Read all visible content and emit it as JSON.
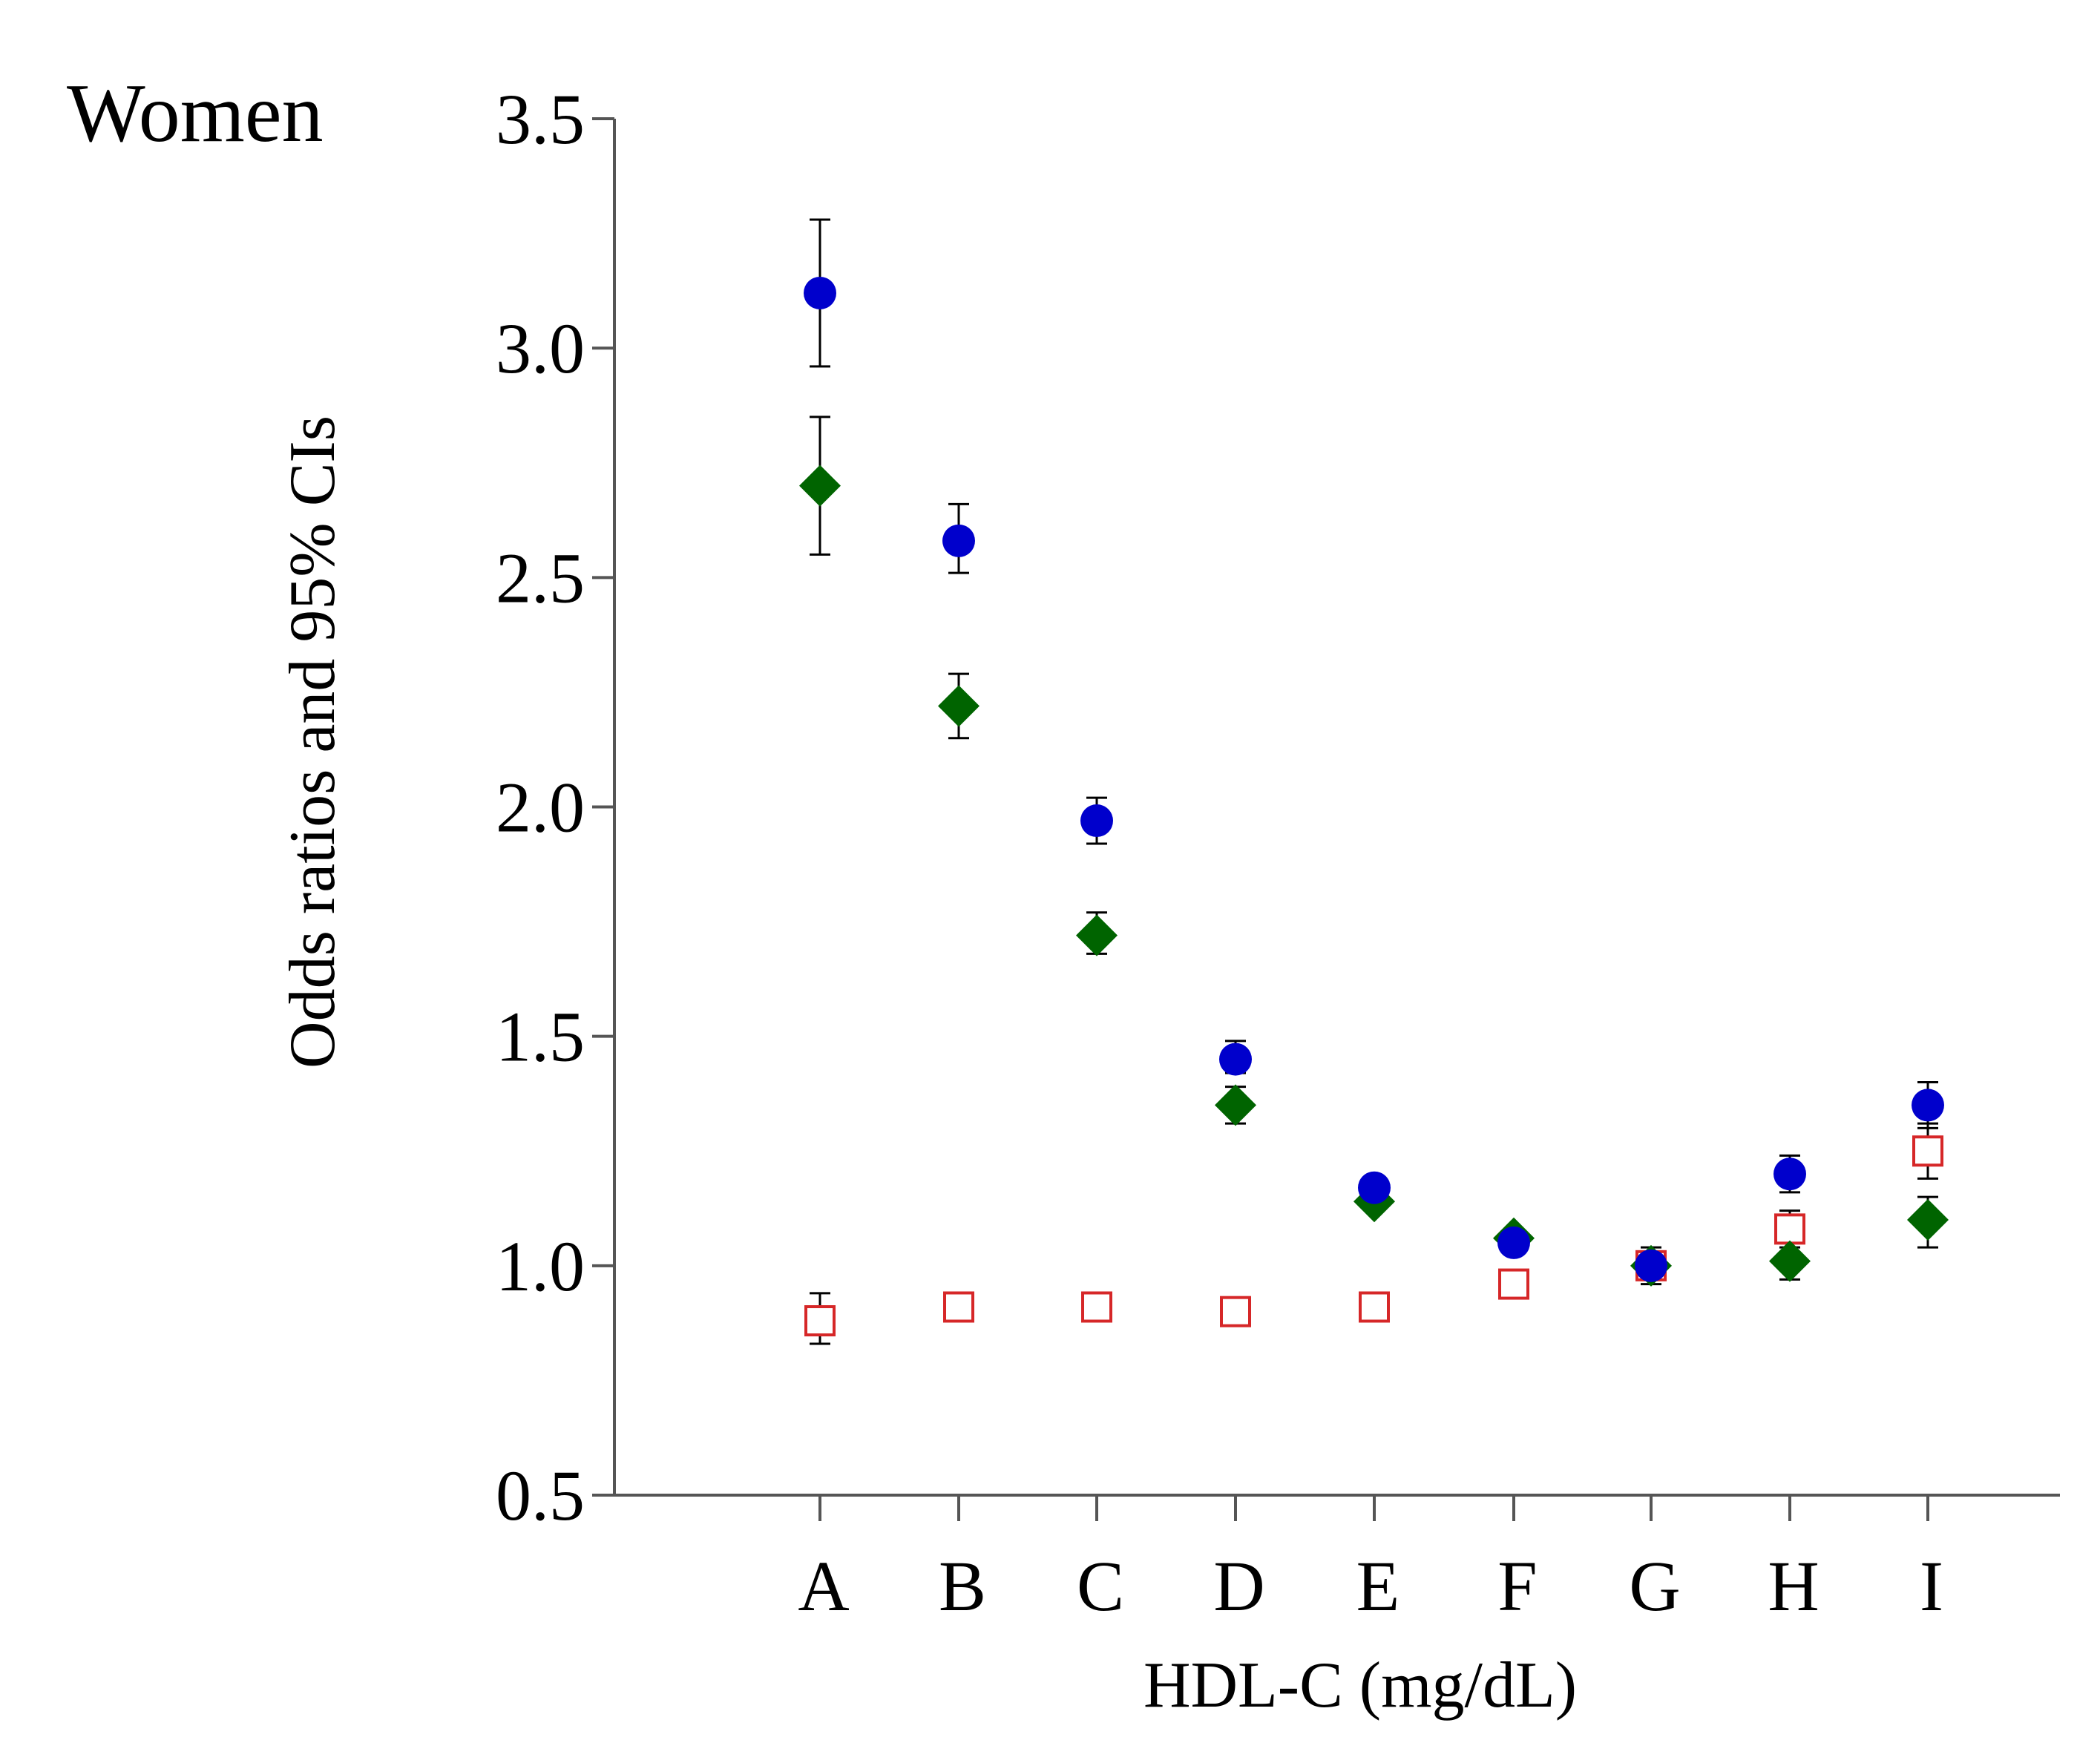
{
  "chart_data": {
    "type": "scatter",
    "panel_title": "Women",
    "xlabel": "HDL-C (mg/dL)",
    "ylabel": "Odds ratios and 95% CIs",
    "categories": [
      "A",
      "B",
      "C",
      "D",
      "E",
      "F",
      "G",
      "H",
      "I"
    ],
    "ylim": [
      0.5,
      3.5
    ],
    "yticks": [
      "0.5",
      "1.0",
      "1.5",
      "2.0",
      "2.5",
      "3.0",
      "3.5"
    ],
    "grid": false,
    "legend": "none",
    "series": [
      {
        "name": "circle",
        "marker": "circle",
        "color": "#0000cc",
        "values": [
          3.12,
          2.58,
          1.97,
          1.45,
          1.17,
          1.05,
          1.0,
          1.2,
          1.35
        ],
        "ci_low": [
          2.96,
          2.51,
          1.92,
          1.42,
          1.15,
          1.03,
          1.0,
          1.16,
          1.3
        ],
        "ci_high": [
          3.28,
          2.66,
          2.02,
          1.49,
          1.19,
          1.08,
          1.0,
          1.24,
          1.4
        ]
      },
      {
        "name": "diamond",
        "marker": "diamond",
        "color": "#006400",
        "values": [
          2.7,
          2.22,
          1.72,
          1.35,
          1.14,
          1.06,
          1.0,
          1.01,
          1.1
        ],
        "ci_low": [
          2.55,
          2.15,
          1.68,
          1.31,
          1.12,
          1.04,
          1.0,
          0.97,
          1.04
        ],
        "ci_high": [
          2.85,
          2.29,
          1.77,
          1.39,
          1.16,
          1.08,
          1.0,
          1.05,
          1.15
        ]
      },
      {
        "name": "open-square",
        "marker": "open-square",
        "color": "#d62728",
        "values": [
          0.88,
          0.91,
          0.91,
          0.9,
          0.91,
          0.96,
          1.0,
          1.08,
          1.25
        ],
        "ci_low": [
          0.83,
          0.89,
          0.89,
          0.88,
          0.89,
          0.94,
          0.96,
          1.04,
          1.19
        ],
        "ci_high": [
          0.94,
          0.93,
          0.93,
          0.92,
          0.93,
          0.98,
          1.04,
          1.12,
          1.31
        ]
      }
    ]
  }
}
